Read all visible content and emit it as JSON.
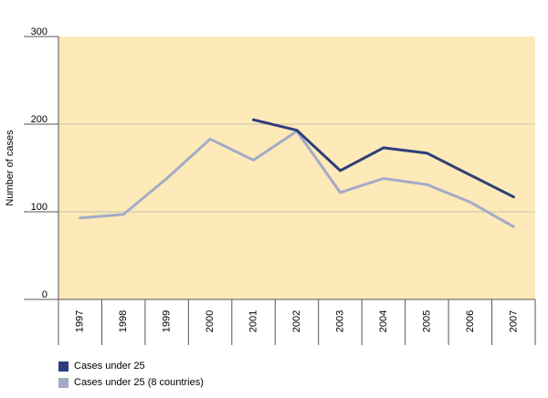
{
  "chart_data": {
    "type": "line",
    "title": "",
    "xlabel": "",
    "ylabel": "Number of cases",
    "x": [
      "1997",
      "1998",
      "1999",
      "2000",
      "2001",
      "2002",
      "2003",
      "2004",
      "2005",
      "2006",
      "2007"
    ],
    "y_ticks": [
      "0",
      "100",
      "200",
      "300"
    ],
    "ylim": [
      0,
      300
    ],
    "grid": true,
    "legend_position": "bottom-left",
    "plot_background": "#fdeab8",
    "series": [
      {
        "name": "Cases under 25",
        "color": "#2e3d7c",
        "values": [
          null,
          null,
          null,
          null,
          205,
          193,
          147,
          173,
          167,
          142,
          117
        ]
      },
      {
        "name": "Cases under 25 (8 countries)",
        "color": "#a4abc7",
        "values": [
          93,
          97,
          138,
          183,
          159,
          192,
          122,
          138,
          131,
          111,
          83
        ]
      }
    ]
  }
}
